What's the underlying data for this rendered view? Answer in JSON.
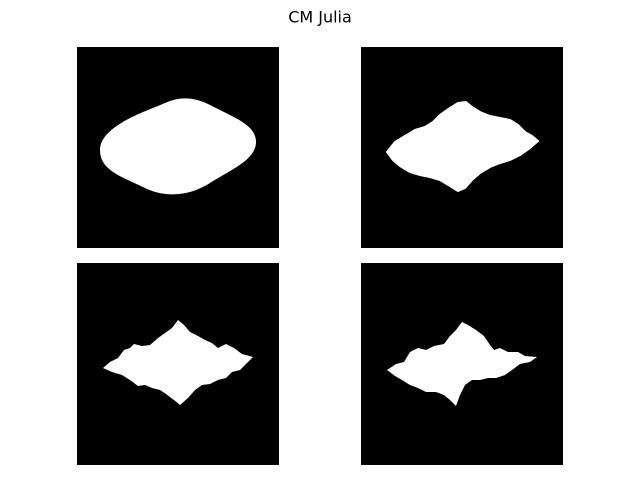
{
  "title": "CM Julia"
}
